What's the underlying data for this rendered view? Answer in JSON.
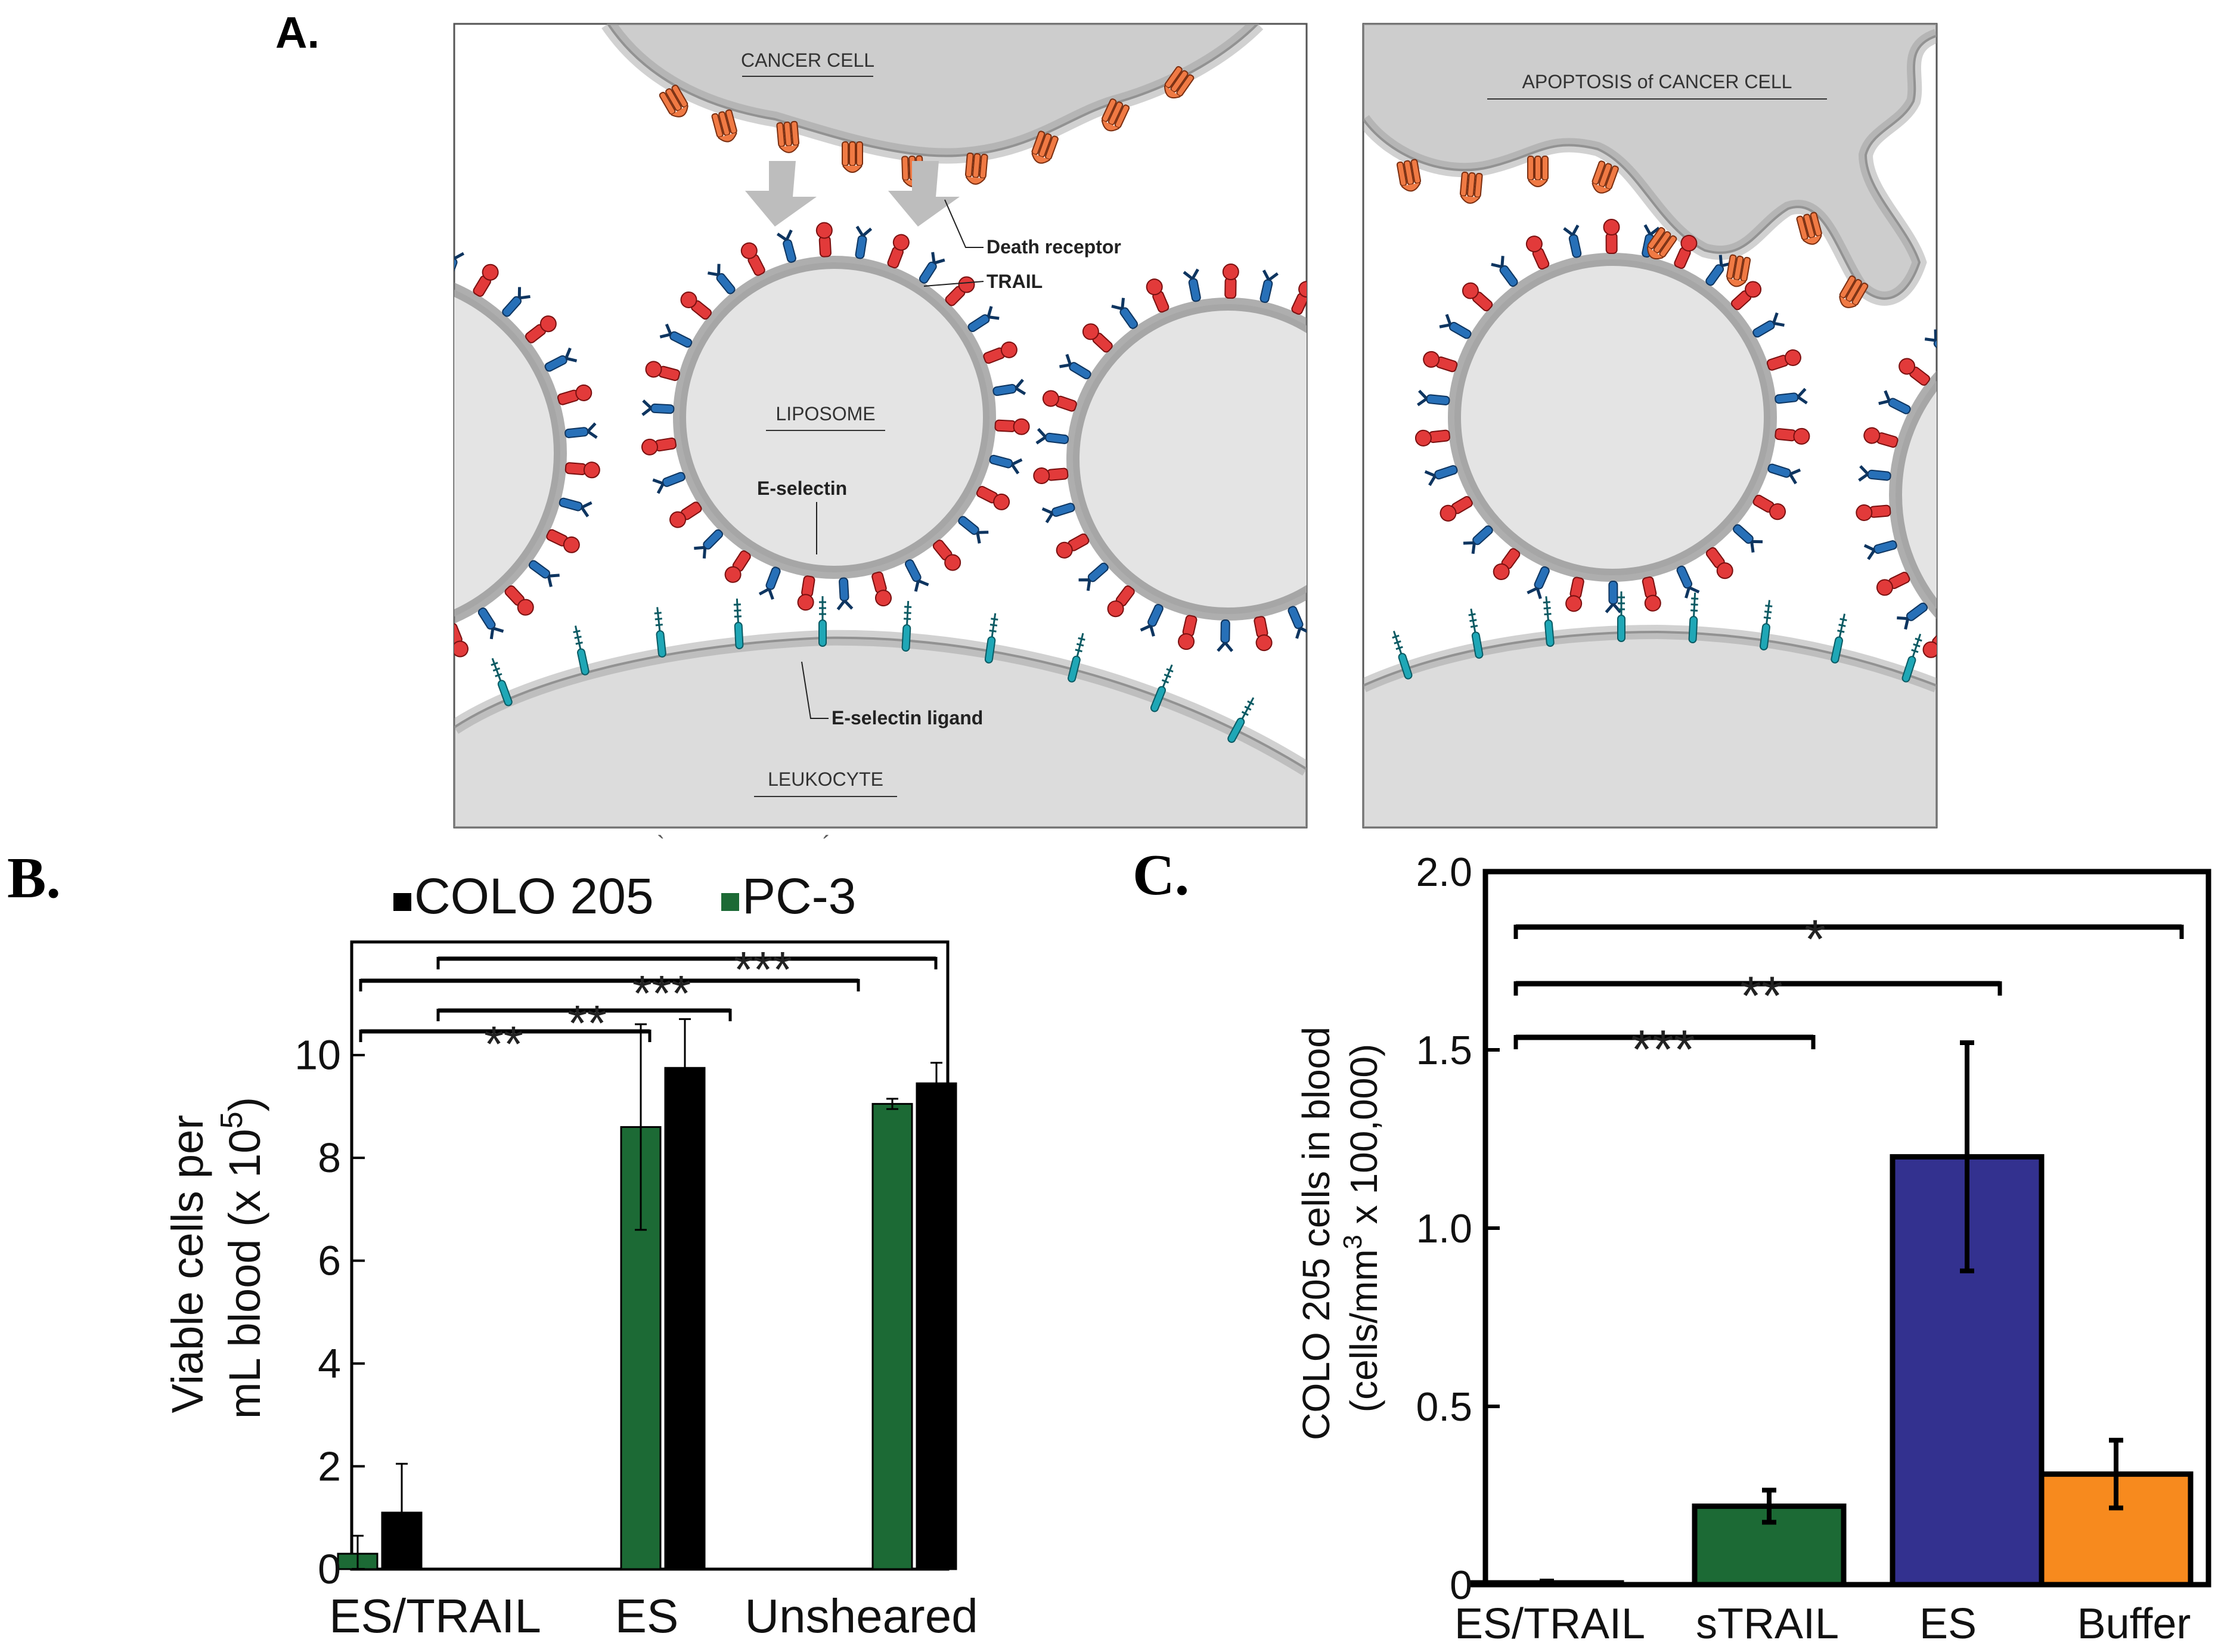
{
  "panels": {
    "a": {
      "letter": "A.",
      "labels": {
        "cancer_cell": "CANCER CELL",
        "apoptosis": "APOPTOSIS of CANCER CELL",
        "death_receptor": "Death receptor",
        "trail": "TRAIL",
        "liposome": "LIPOSOME",
        "e_selectin": "E-selectin",
        "e_selectin_ligand": "E-selectin ligand",
        "leukocyte": "LEUKOCYTE"
      }
    },
    "b": {
      "letter": "B."
    },
    "c": {
      "letter": "C."
    }
  },
  "colors": {
    "green": "#1c6a35",
    "black": "#000000",
    "blue_bar": "#33318f",
    "orange_bar": "#f78a1e",
    "trail_red": "#e23a3a",
    "eselectin_blue": "#2770b8",
    "ligand_teal": "#1fa7b6",
    "receptor_orange": "#f07a44",
    "cell_gray": "#cdcdcd",
    "liposome_fill": "#e4e4e4"
  },
  "chart_data": [
    {
      "id": "B",
      "type": "bar",
      "categories": [
        "ES/TRAIL",
        "ES",
        "Unsheared"
      ],
      "series": [
        {
          "name": "PC-3",
          "color": "#1c6a35",
          "values": [
            0.3,
            8.6,
            9.05
          ],
          "errors": [
            0.35,
            2.0,
            0.1
          ]
        },
        {
          "name": "COLO 205",
          "color": "#000000",
          "values": [
            1.1,
            9.75,
            9.45
          ],
          "errors": [
            0.95,
            0.95,
            0.4
          ]
        }
      ],
      "ylabel_line1": "Viable cells per",
      "ylabel_line2_prefix": "mL blood (x 10",
      "ylabel_line2_exp": "5",
      "ylabel_line2_suffix": ")",
      "ylim": [
        0,
        12.2
      ],
      "yticks": [
        0,
        2,
        4,
        6,
        8,
        10
      ],
      "legend": [
        {
          "name": "COLO 205",
          "color": "#000000"
        },
        {
          "name": "PC-3",
          "color": "#1c6a35"
        }
      ],
      "legend_position": "top",
      "significance": [
        {
          "from": "ES/TRAIL PC-3",
          "to": "ES PC-3",
          "label": "**"
        },
        {
          "from": "ES/TRAIL COLO 205",
          "to": "ES COLO 205",
          "label": "**"
        },
        {
          "from": "ES/TRAIL PC-3",
          "to": "Unsheared PC-3",
          "label": "***"
        },
        {
          "from": "ES/TRAIL COLO 205",
          "to": "Unsheared COLO 205",
          "label": "***"
        }
      ]
    },
    {
      "id": "C",
      "type": "bar",
      "categories": [
        "ES/TRAIL",
        "sTRAIL",
        "ES",
        "Buffer"
      ],
      "values": [
        0.005,
        0.22,
        1.2,
        0.31
      ],
      "errors": [
        0.005,
        0.045,
        0.32,
        0.095
      ],
      "colors": [
        "#000000",
        "#1c6a35",
        "#33318f",
        "#f78a1e"
      ],
      "ylabel_line1": "COLO 205 cells in blood",
      "ylabel_line2_prefix": "(cells/mm",
      "ylabel_line2_exp": "3",
      "ylabel_line2_suffix": " x 100,000)",
      "ylim": [
        0,
        2.0
      ],
      "yticks": [
        "0",
        "0.5",
        "1.0",
        "1.5",
        "2.0"
      ],
      "significance": [
        {
          "from": "ES/TRAIL",
          "to": "sTRAIL",
          "label": "***"
        },
        {
          "from": "ES/TRAIL",
          "to": "ES",
          "label": "**"
        },
        {
          "from": "ES/TRAIL",
          "to": "Buffer",
          "label": "*"
        }
      ]
    }
  ]
}
